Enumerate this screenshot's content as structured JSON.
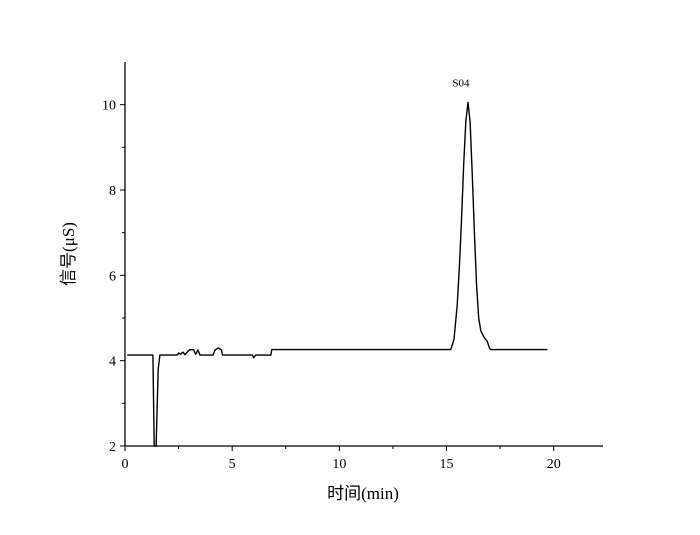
{
  "chart_data": {
    "type": "line",
    "title": "",
    "xlabel": "时间(min)",
    "ylabel": "信号(μS)",
    "xlim": [
      0,
      22.3
    ],
    "ylim": [
      2,
      11
    ],
    "xticks": [
      0,
      5,
      10,
      15,
      20
    ],
    "yticks": [
      2,
      4,
      6,
      8,
      10
    ],
    "grid": false,
    "line_color": "#000000",
    "annotations": [
      {
        "text": "S04",
        "x": 16.0,
        "y": 10.5
      }
    ],
    "series": [
      {
        "x": [
          0.1,
          1.3,
          1.36,
          1.45,
          1.55,
          1.63,
          2.45,
          2.5,
          2.6,
          2.7,
          2.8,
          2.9,
          3.0,
          3.2,
          3.3,
          3.4,
          3.5,
          4.1,
          4.2,
          4.35,
          4.5,
          4.55,
          5.95,
          6.0,
          6.1,
          6.8,
          6.85,
          15.2,
          15.35,
          15.5,
          15.6,
          15.7,
          15.8,
          15.9,
          16.0,
          16.1,
          16.2,
          16.3,
          16.4,
          16.5,
          16.6,
          16.75,
          16.9,
          17.0,
          17.05,
          19.7
        ],
        "y": [
          4.13,
          4.13,
          2.0,
          2.0,
          3.8,
          4.13,
          4.13,
          4.18,
          4.15,
          4.2,
          4.14,
          4.2,
          4.25,
          4.26,
          4.15,
          4.25,
          4.13,
          4.13,
          4.25,
          4.3,
          4.25,
          4.13,
          4.13,
          4.07,
          4.13,
          4.13,
          4.26,
          4.26,
          4.5,
          5.3,
          6.2,
          7.3,
          8.6,
          9.6,
          10.05,
          9.6,
          8.4,
          7.0,
          5.8,
          5.0,
          4.7,
          4.55,
          4.45,
          4.3,
          4.26,
          4.26
        ]
      }
    ]
  }
}
